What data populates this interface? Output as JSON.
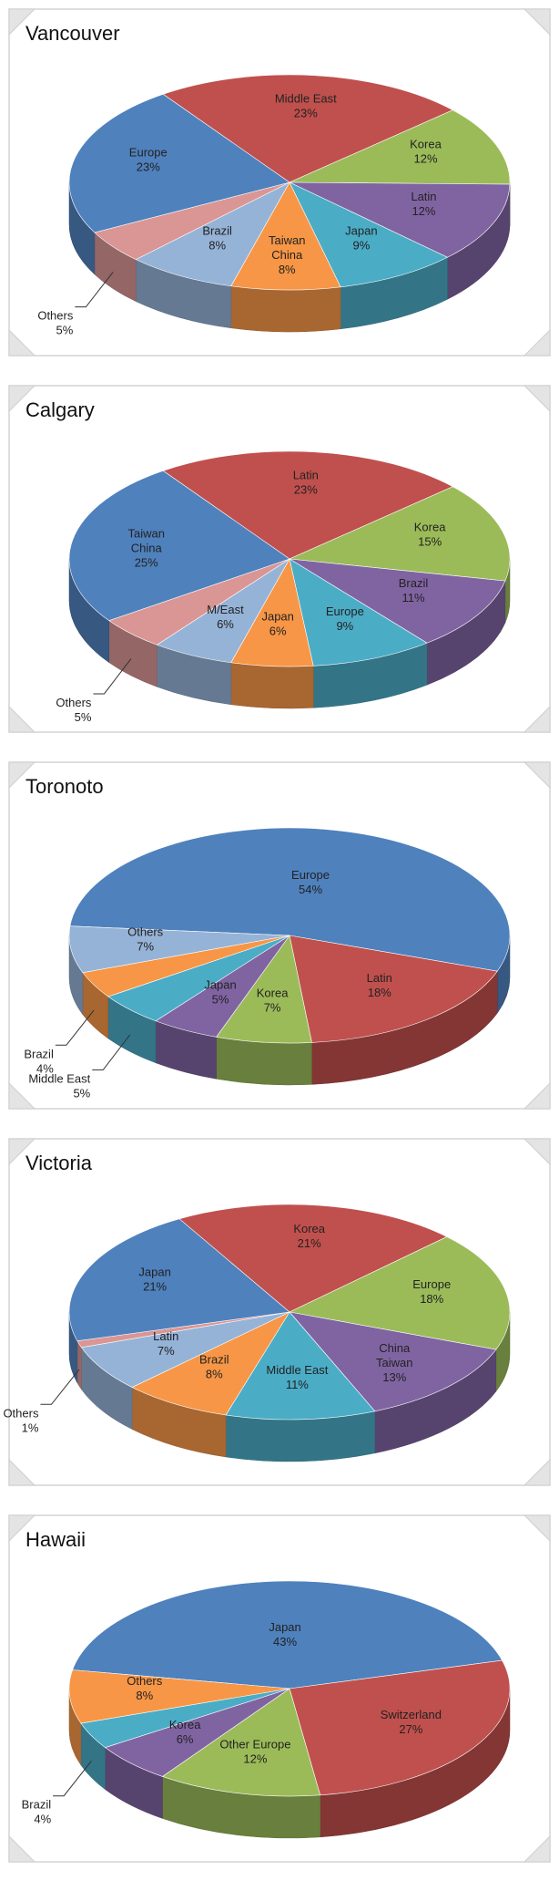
{
  "chart_data": [
    {
      "type": "pie",
      "title": "Vancouver",
      "categories": [
        "Middle East",
        "Korea",
        "Latin",
        "Japan",
        "Taiwan\nChina",
        "Brazil",
        "Others",
        "Europe"
      ],
      "values": [
        23,
        12,
        12,
        9,
        8,
        8,
        5,
        23
      ],
      "value_labels": [
        "23%",
        "12%",
        "12%",
        "9%",
        "8%",
        "8%",
        "5%",
        "23%"
      ],
      "colors": [
        "#c0504d",
        "#9bbb59",
        "#8064a2",
        "#4bacc6",
        "#f79646",
        "#95b3d7",
        "#d99694",
        "#4f81bd"
      ]
    },
    {
      "type": "pie",
      "title": "Calgary",
      "categories": [
        "Latin",
        "Korea",
        "Brazil",
        "Europe",
        "Japan",
        "M/East",
        "Others",
        "Taiwan\nChina"
      ],
      "values": [
        23,
        15,
        11,
        9,
        6,
        6,
        5,
        25
      ],
      "value_labels": [
        "23%",
        "15%",
        "11%",
        "9%",
        "6%",
        "6%",
        "5%",
        "25%"
      ],
      "colors": [
        "#c0504d",
        "#9bbb59",
        "#8064a2",
        "#4bacc6",
        "#f79646",
        "#95b3d7",
        "#d99694",
        "#4f81bd"
      ]
    },
    {
      "type": "pie",
      "title": "Toronoto",
      "categories": [
        "Europe",
        "Latin",
        "Korea",
        "Japan",
        "Middle East",
        "Brazil",
        "Others"
      ],
      "values": [
        54,
        18,
        7,
        5,
        5,
        4,
        7
      ],
      "value_labels": [
        "54%",
        "18%",
        "7%",
        "5%",
        "5%",
        "4%",
        "7%"
      ],
      "colors": [
        "#4f81bd",
        "#c0504d",
        "#9bbb59",
        "#8064a2",
        "#4bacc6",
        "#f79646",
        "#95b3d7"
      ]
    },
    {
      "type": "pie",
      "title": "Victoria",
      "categories": [
        "Korea",
        "Europe",
        "China\nTaiwan",
        "Middle East",
        "Brazil",
        "Latin",
        "Others",
        "Japan"
      ],
      "values": [
        21,
        18,
        13,
        11,
        8,
        7,
        1,
        21
      ],
      "value_labels": [
        "21%",
        "18%",
        "13%",
        "11%",
        "8%",
        "7%",
        "1%",
        "21%"
      ],
      "colors": [
        "#c0504d",
        "#9bbb59",
        "#8064a2",
        "#4bacc6",
        "#f79646",
        "#95b3d7",
        "#d99694",
        "#4f81bd"
      ]
    },
    {
      "type": "pie",
      "title": "Hawaii",
      "categories": [
        "Japan",
        "Switzerland",
        "Other Europe",
        "Korea",
        "Brazil",
        "Others"
      ],
      "values": [
        43,
        27,
        12,
        6,
        4,
        8
      ],
      "value_labels": [
        "43%",
        "27%",
        "12%",
        "6%",
        "4%",
        "8%"
      ],
      "colors": [
        "#4f81bd",
        "#c0504d",
        "#9bbb59",
        "#8064a2",
        "#4bacc6",
        "#f79646"
      ]
    }
  ]
}
